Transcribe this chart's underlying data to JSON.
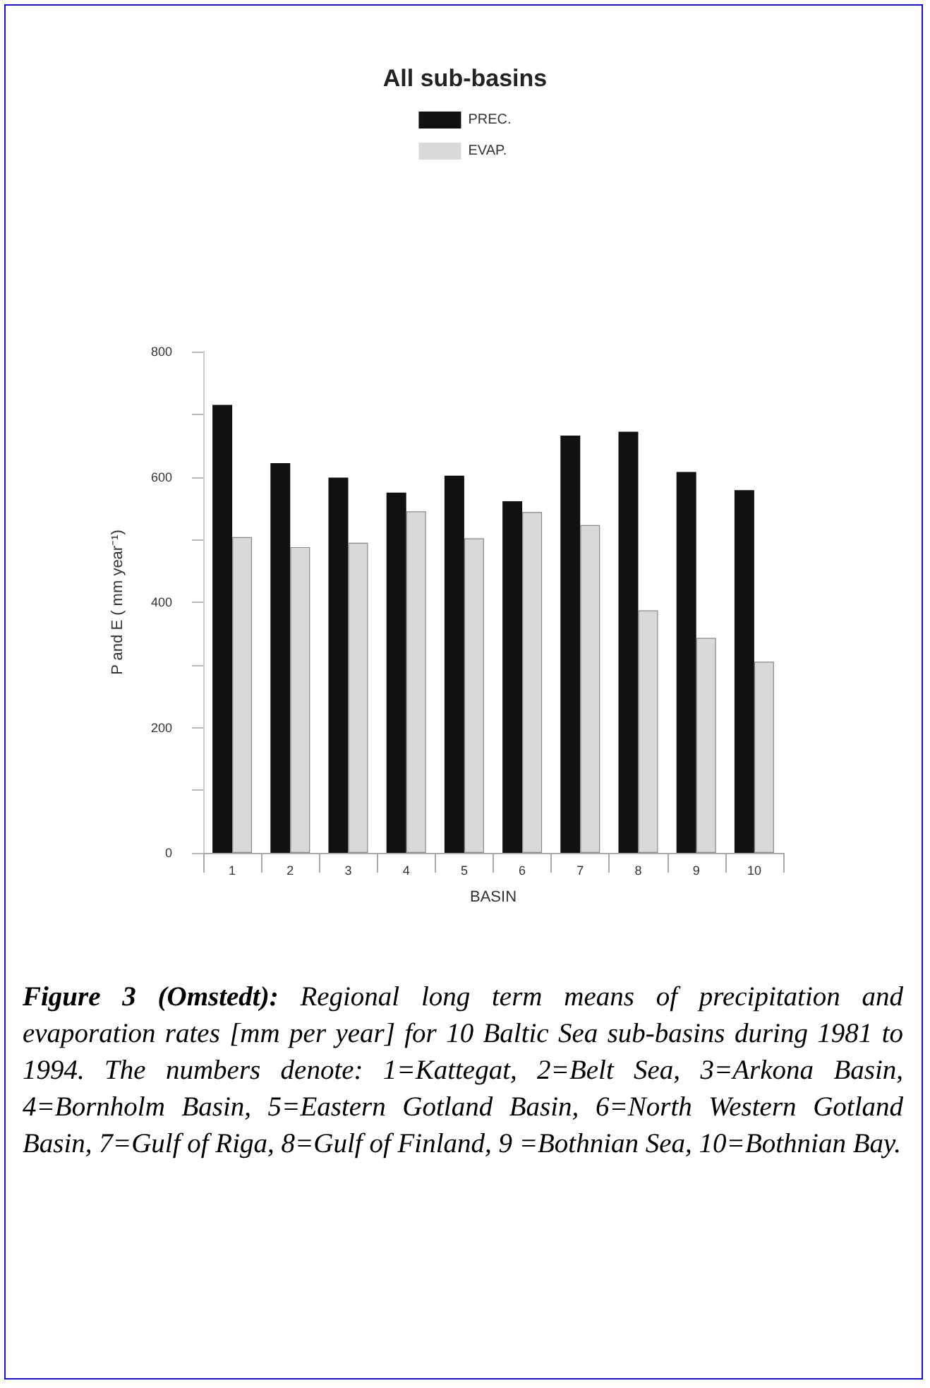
{
  "chart_data": {
    "type": "bar",
    "title": "All sub-basins",
    "xlabel": "BASIN",
    "ylabel": "P and E ( mm year⁻¹)",
    "categories": [
      "1",
      "2",
      "3",
      "4",
      "5",
      "6",
      "7",
      "8",
      "9",
      "10"
    ],
    "series": [
      {
        "name": "PREC.",
        "color": "#111111",
        "values": [
          715,
          622,
          599,
          575,
          602,
          561,
          666,
          672,
          608,
          579
        ]
      },
      {
        "name": "EVAP.",
        "color": "#d9d9d9",
        "values": [
          504,
          488,
          495,
          545,
          502,
          544,
          523,
          387,
          343,
          305
        ]
      }
    ],
    "ylim": [
      0,
      800
    ],
    "yticks": [
      0,
      {
        "value": 100,
        "label": null
      },
      200,
      {
        "value": 300,
        "label": null
      },
      400,
      {
        "value": 500,
        "label": null
      },
      600,
      {
        "value": 700,
        "label": null
      },
      800
    ],
    "grid": false,
    "legend": "top",
    "annotations": [
      "Figure 3 (Omstedt): Regional long term means of precipitation and evaporation rates [mm per year] for 10 Baltic Sea sub-basins during 1981 to 1994. The numbers denote: 1=Kattegat, 2=Belt Sea, 3=Arkona Basin, 4=Bornholm Basin, 5=Eastern Gotland Basin, 6=North Western Gotland Basin, 7=Gulf of Riga, 8=Gulf of Finland, 9 =Bothnian Sea, 10=Bothnian Bay."
    ]
  }
}
